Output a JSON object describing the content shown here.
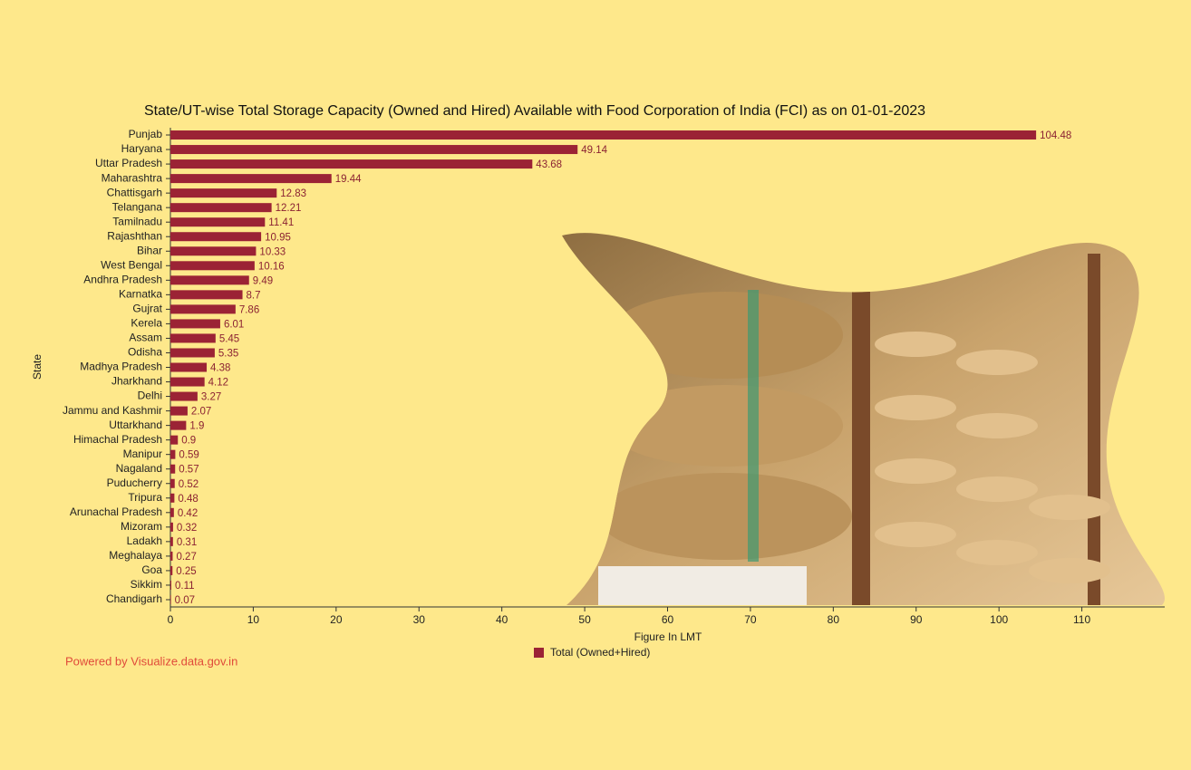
{
  "chart_data": {
    "type": "barh",
    "title": "State/UT-wise Total Storage Capacity (Owned and Hired) Available with Food Corporation of India (FCI) as on 01-01-2023",
    "x_label": "Figure In LMT",
    "y_label": "State",
    "credit": "Powered by Visualize.data.gov.in",
    "categories": [
      "Punjab",
      "Haryana",
      "Uttar Pradesh",
      "Maharashtra",
      "Chattisgarh",
      "Telangana",
      "Tamilnadu",
      "Rajashthan",
      "Bihar",
      "West Bengal",
      "Andhra Pradesh",
      "Karnatka",
      "Gujrat",
      "Kerela",
      "Assam",
      "Odisha",
      "Madhya Pradesh",
      "Jharkhand",
      "Delhi",
      "Jammu and Kashmir",
      "Uttarkhand",
      "Himachal Pradesh",
      "Manipur",
      "Nagaland",
      "Puducherry",
      "Tripura",
      "Arunachal Pradesh",
      "Mizoram",
      "Ladakh",
      "Meghalaya",
      "Goa",
      "Sikkim",
      "Chandigarh"
    ],
    "series": [
      {
        "name": "Total (Owned+Hired)",
        "color": "#9b2335",
        "values": [
          104.48,
          49.14,
          43.68,
          19.44,
          12.83,
          12.21,
          11.41,
          10.95,
          10.33,
          10.16,
          9.49,
          8.7,
          7.86,
          6.01,
          5.45,
          5.35,
          4.38,
          4.12,
          3.27,
          2.07,
          1.9,
          0.9,
          0.59,
          0.57,
          0.52,
          0.48,
          0.42,
          0.32,
          0.31,
          0.27,
          0.25,
          0.11,
          0.07
        ]
      }
    ],
    "xlim": [
      0,
      120
    ],
    "xticks": [
      0,
      10,
      20,
      30,
      40,
      50,
      60,
      70,
      80,
      90,
      100,
      110
    ]
  }
}
